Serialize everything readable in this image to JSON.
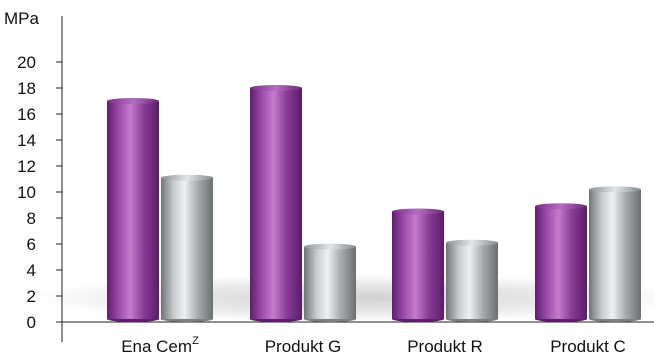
{
  "chart_data": {
    "type": "bar",
    "unit": "MPa",
    "categories": [
      "Ena Cem",
      "Produkt G",
      "Produkt R",
      "Produkt C"
    ],
    "category_superscripts": [
      "Z",
      "",
      "",
      ""
    ],
    "series": [
      {
        "values": [
          17,
          18,
          8.5,
          8.9
        ],
        "color": "#8a3d96"
      },
      {
        "values": [
          11.1,
          5.8,
          6.1,
          10.2
        ],
        "color": "#9ea3a6"
      }
    ],
    "ylim": [
      0,
      20
    ],
    "yticks": [
      0,
      2,
      4,
      6,
      8,
      10,
      12,
      14,
      16,
      18,
      20
    ],
    "grid": false
  }
}
